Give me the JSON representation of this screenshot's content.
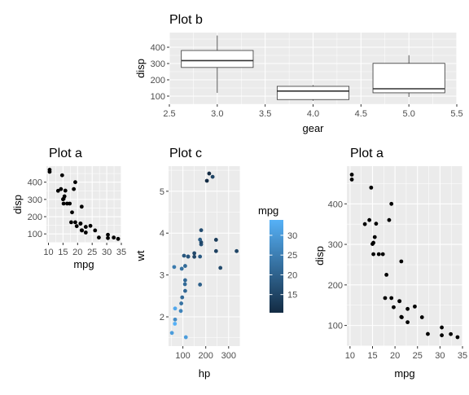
{
  "colors": {
    "panel": "#ebebeb",
    "grid": "#ffffff",
    "mpg_low": "#132B43",
    "mpg_high": "#56B1F7"
  },
  "chart_data": [
    {
      "id": "plot_b",
      "type": "boxplot",
      "title": "Plot b",
      "xlabel": "gear",
      "ylabel": "disp",
      "xlim": [
        2.5,
        5.5
      ],
      "ylim": [
        50,
        490
      ],
      "xticks": [
        "2.5",
        "3.0",
        "3.5",
        "4.0",
        "4.5",
        "5.0",
        "5.5"
      ],
      "xtick_values": [
        2.5,
        3.0,
        3.5,
        4.0,
        4.5,
        5.0,
        5.5
      ],
      "yticks": [
        "100",
        "200",
        "300",
        "400"
      ],
      "ytick_values": [
        100,
        200,
        300,
        400
      ],
      "boxes": [
        {
          "x": 3,
          "min": 120.1,
          "q1": 275.8,
          "median": 318,
          "q3": 380,
          "max": 472
        },
        {
          "x": 4,
          "min": 71.1,
          "q1": 78.85,
          "median": 130.9,
          "q3": 160,
          "max": 167.6
        },
        {
          "x": 5,
          "min": 95.1,
          "q1": 120.3,
          "median": 145,
          "q3": 301,
          "max": 351
        }
      ]
    },
    {
      "id": "plot_a_small",
      "type": "scatter",
      "title": "Plot a",
      "xlabel": "mpg",
      "ylabel": "disp",
      "xlim": [
        9.3,
        35.0
      ],
      "ylim": [
        49,
        493
      ],
      "xticks": [
        "10",
        "15",
        "20",
        "25",
        "30",
        "35"
      ],
      "xtick_values": [
        10,
        15,
        20,
        25,
        30,
        35
      ],
      "yticks": [
        "100",
        "200",
        "300",
        "400"
      ],
      "ytick_values": [
        100,
        200,
        300,
        400
      ],
      "points_ref": "mtcars"
    },
    {
      "id": "plot_c",
      "type": "scatter",
      "title": "Plot c",
      "xlabel": "hp",
      "ylabel": "wt",
      "xlim": [
        37.35,
        350.65
      ],
      "ylim": [
        1.3,
        5.6
      ],
      "xticks": [
        "100",
        "200",
        "300"
      ],
      "xtick_values": [
        100,
        200,
        300
      ],
      "yticks": [
        "2",
        "3",
        "4",
        "5"
      ],
      "ytick_values": [
        2,
        3,
        4,
        5
      ],
      "color_by": "mpg",
      "legend": {
        "title": "mpg",
        "labels": [
          "15",
          "20",
          "25",
          "30"
        ],
        "values": [
          15,
          20,
          25,
          30
        ],
        "range": [
          10.4,
          33.9
        ],
        "placement": "right"
      },
      "points_ref": "mtcars"
    },
    {
      "id": "plot_a_large",
      "type": "scatter",
      "title": "Plot a",
      "xlabel": "mpg",
      "ylabel": "disp",
      "xlim": [
        9.3,
        35.0
      ],
      "ylim": [
        49,
        493
      ],
      "xticks": [
        "10",
        "15",
        "20",
        "25",
        "30",
        "35"
      ],
      "xtick_values": [
        10,
        15,
        20,
        25,
        30,
        35
      ],
      "yticks": [
        "100",
        "200",
        "300",
        "400"
      ],
      "ytick_values": [
        100,
        200,
        300,
        400
      ],
      "points_ref": "mtcars"
    }
  ],
  "mtcars": {
    "mpg": [
      21.0,
      21.0,
      22.8,
      21.4,
      18.7,
      18.1,
      14.3,
      24.4,
      22.8,
      19.2,
      17.8,
      16.4,
      17.3,
      15.2,
      10.4,
      10.4,
      14.7,
      32.4,
      30.4,
      33.9,
      21.5,
      15.5,
      15.2,
      13.3,
      19.2,
      27.3,
      26.0,
      30.4,
      15.8,
      19.7,
      15.0,
      21.4
    ],
    "disp": [
      160,
      160,
      108,
      258,
      360,
      225,
      360,
      146.7,
      140.8,
      167.6,
      167.6,
      275.8,
      275.8,
      275.8,
      472,
      460,
      440,
      78.7,
      75.7,
      71.1,
      120.1,
      318,
      304,
      350,
      400,
      79,
      120.3,
      95.1,
      351,
      145,
      301,
      121
    ],
    "hp": [
      110,
      110,
      93,
      110,
      175,
      105,
      245,
      62,
      95,
      123,
      123,
      180,
      180,
      180,
      205,
      215,
      230,
      66,
      52,
      65,
      97,
      150,
      150,
      245,
      175,
      66,
      91,
      113,
      264,
      175,
      335,
      109
    ],
    "wt": [
      2.62,
      2.875,
      2.32,
      3.215,
      3.44,
      3.46,
      3.57,
      3.19,
      3.15,
      3.44,
      3.44,
      4.07,
      3.73,
      3.78,
      5.25,
      5.424,
      5.345,
      2.2,
      1.615,
      1.835,
      2.465,
      3.52,
      3.435,
      3.84,
      3.845,
      1.935,
      2.14,
      1.513,
      3.17,
      2.77,
      3.57,
      2.78
    ]
  }
}
